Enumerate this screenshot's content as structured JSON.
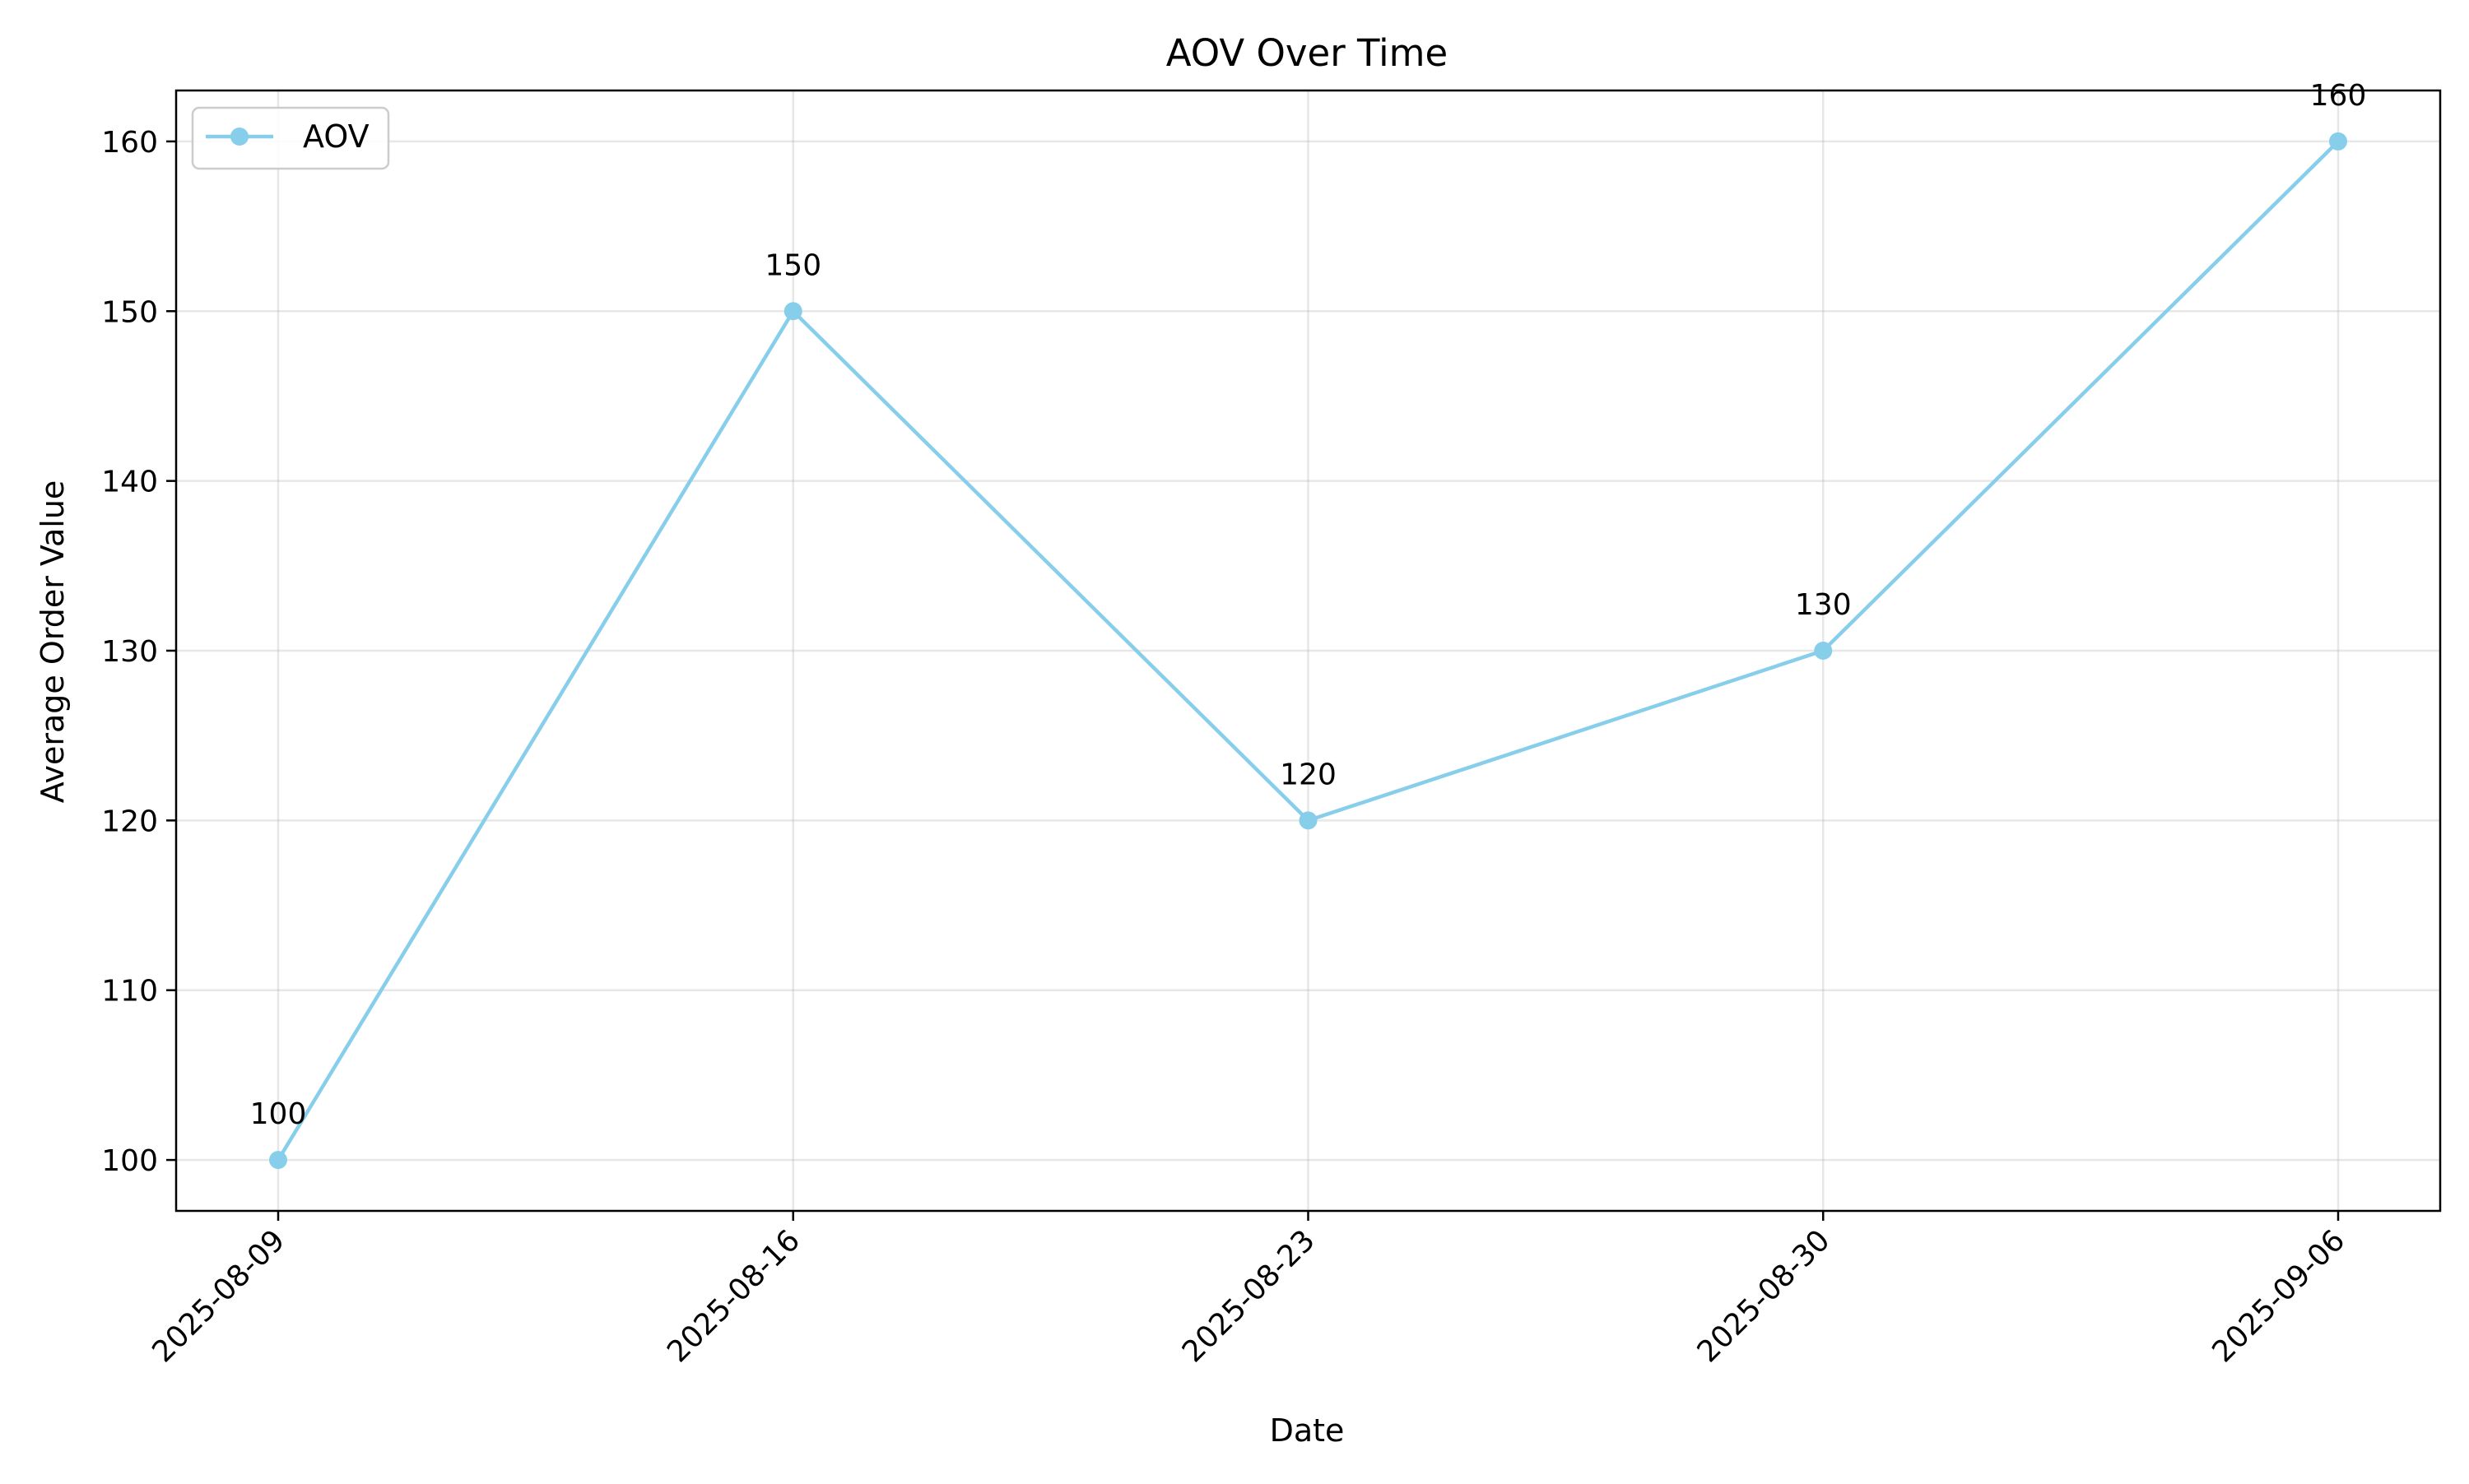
{
  "chart_data": {
    "type": "line",
    "title": "AOV Over Time",
    "xlabel": "Date",
    "ylabel": "Average Order Value",
    "categories": [
      "2025-08-09",
      "2025-08-16",
      "2025-08-23",
      "2025-08-30",
      "2025-09-06"
    ],
    "series": [
      {
        "name": "AOV",
        "values": [
          100,
          150,
          120,
          130,
          160
        ],
        "color": "#87ceeb",
        "marker": "circle"
      }
    ],
    "data_labels": [
      "100",
      "150",
      "120",
      "130",
      "160"
    ],
    "yticks": [
      100,
      110,
      120,
      130,
      140,
      150,
      160
    ],
    "ylim": [
      97,
      163
    ],
    "grid": true,
    "legend_position": "top-left"
  }
}
